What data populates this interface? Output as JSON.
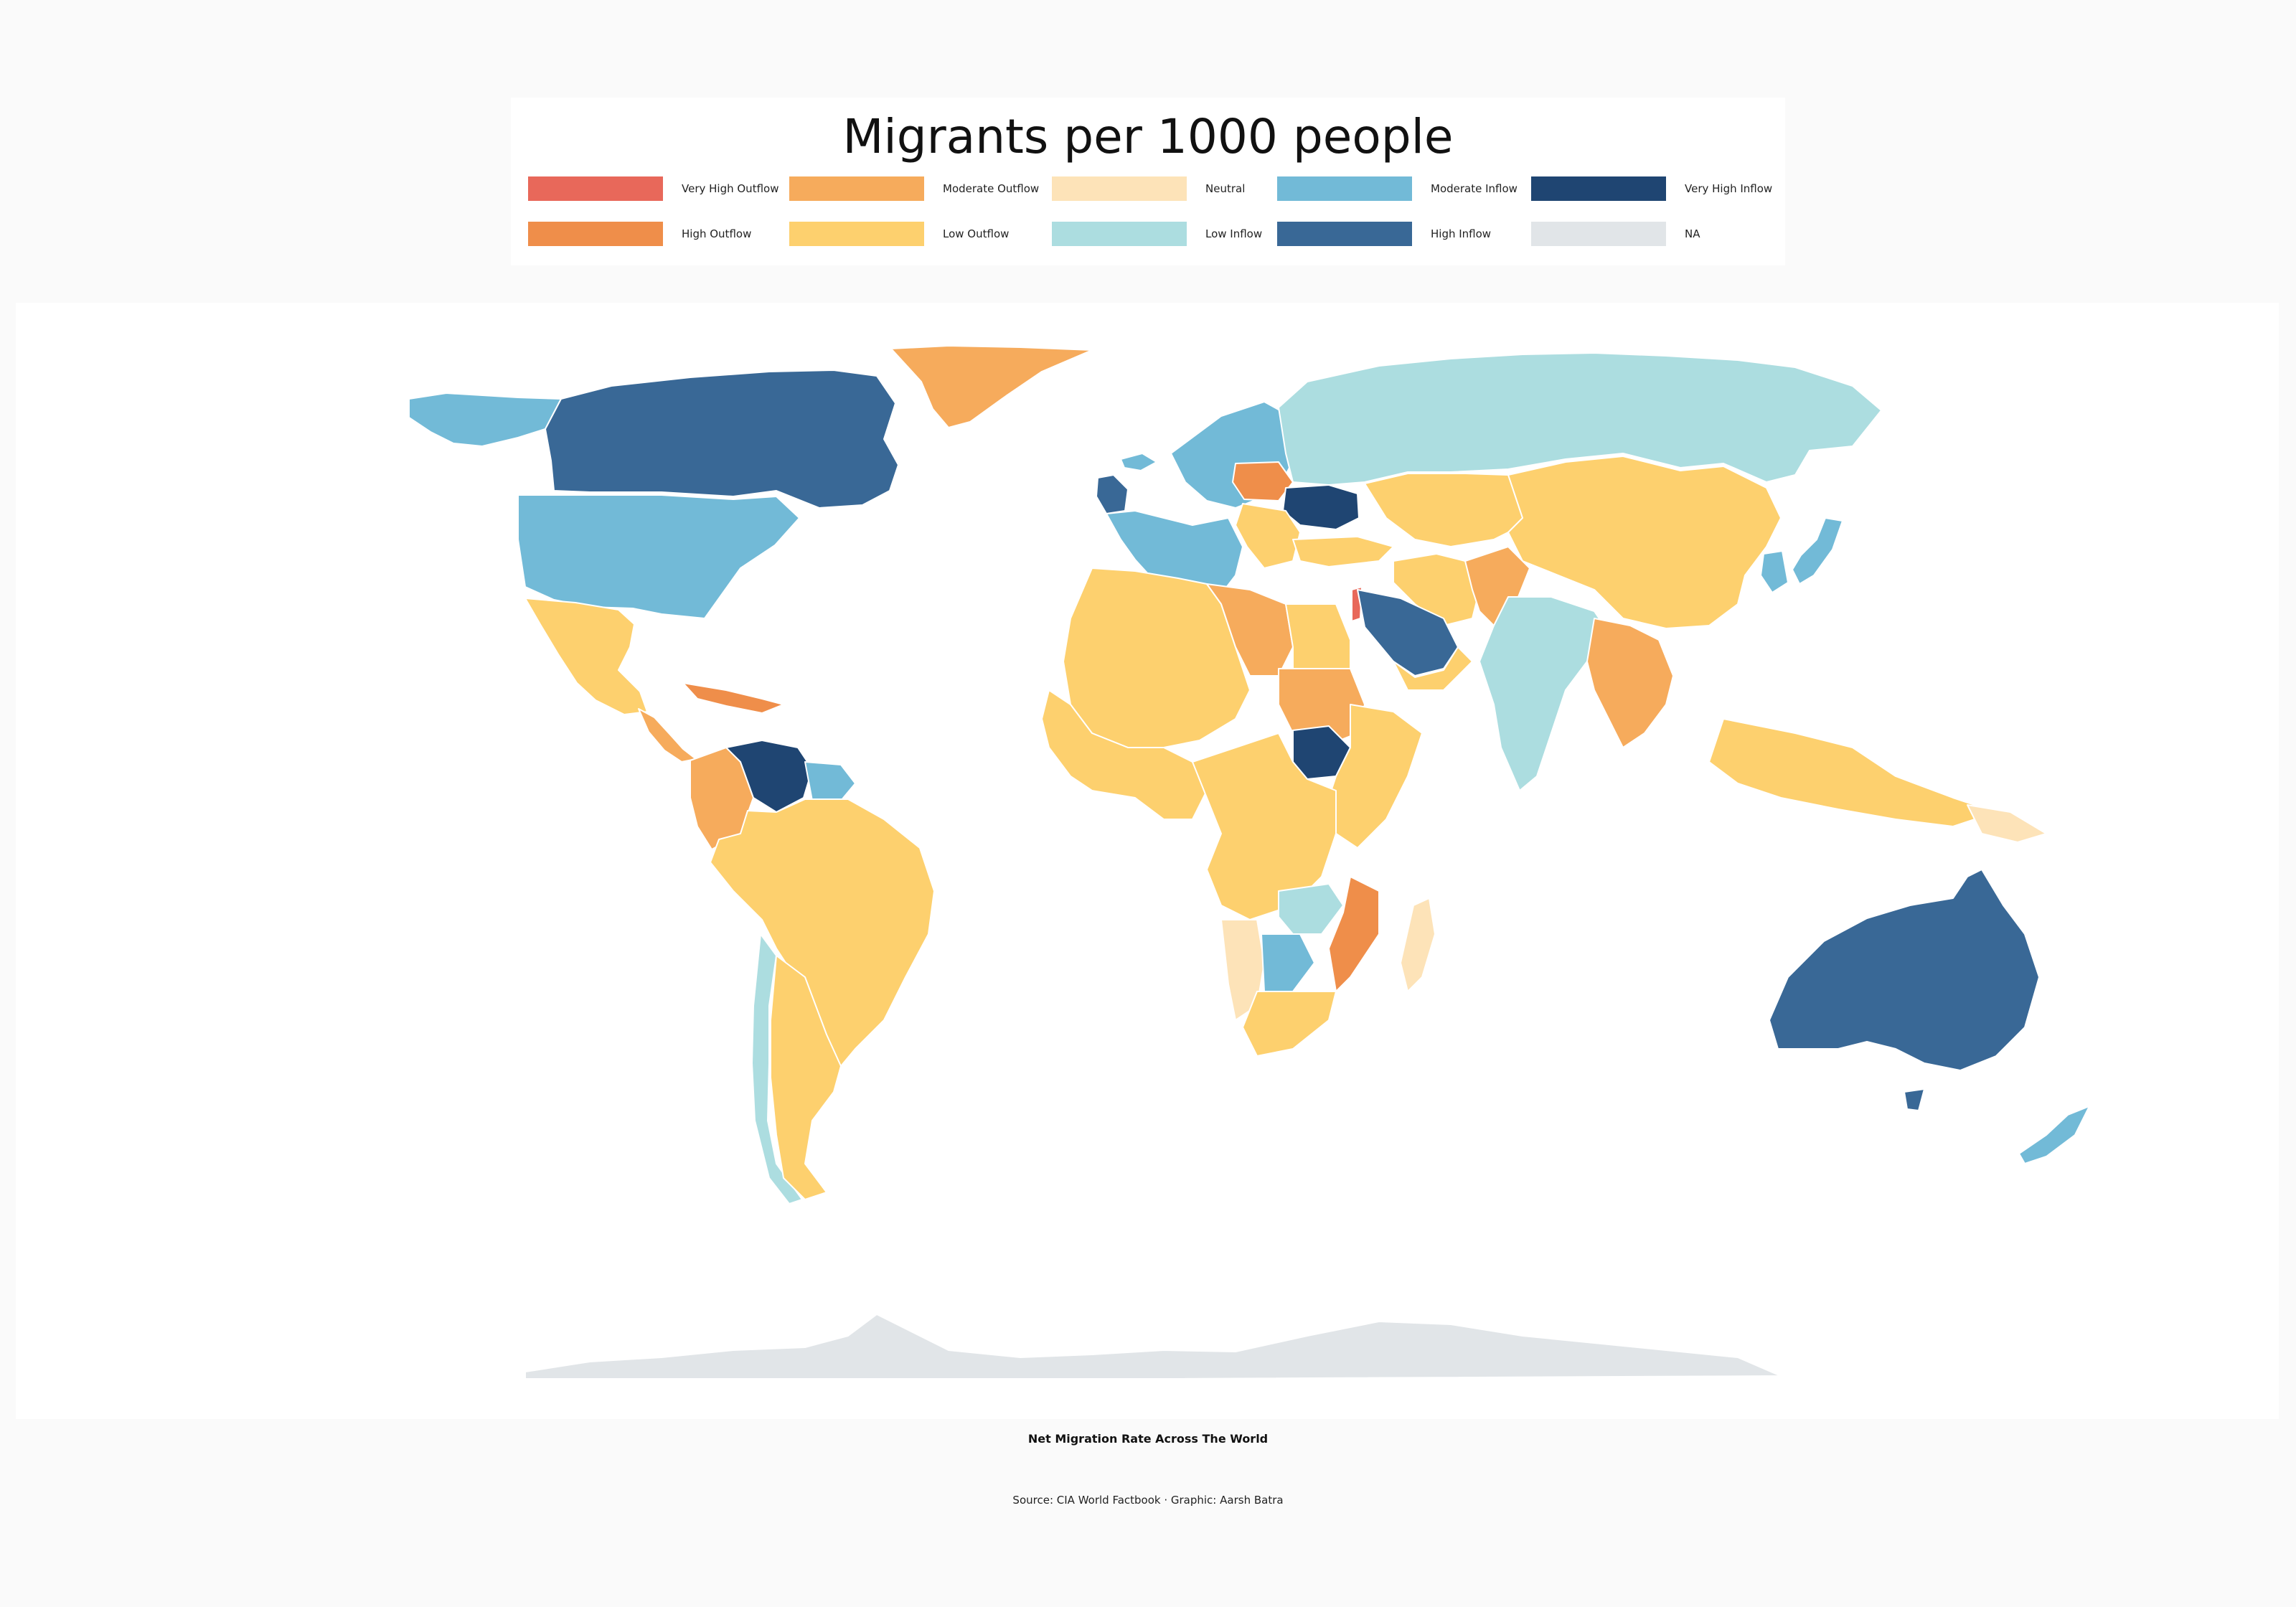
{
  "legend": {
    "title": "Migrants per 1000 people",
    "items": [
      {
        "key": "very-high-outflow",
        "label": "Very High Outflow",
        "color": "#e8685a"
      },
      {
        "key": "moderate-outflow",
        "label": "Moderate Outflow",
        "color": "#f6ab5c"
      },
      {
        "key": "neutral",
        "label": "Neutral",
        "color": "#fde3b8"
      },
      {
        "key": "moderate-inflow",
        "label": "Moderate Inflow",
        "color": "#72bad7"
      },
      {
        "key": "very-high-inflow",
        "label": "Very High Inflow",
        "color": "#1f4572"
      },
      {
        "key": "high-outflow",
        "label": "High Outflow",
        "color": "#ef8e4a"
      },
      {
        "key": "low-outflow",
        "label": "Low Outflow",
        "color": "#fdd06e"
      },
      {
        "key": "low-inflow",
        "label": "Low Inflow",
        "color": "#acdde0"
      },
      {
        "key": "high-inflow",
        "label": "High Inflow",
        "color": "#396896"
      },
      {
        "key": "na",
        "label": "NA",
        "color": "#e1e5e8"
      }
    ]
  },
  "map": {
    "regions": [
      {
        "name": "Canada",
        "category": "high-inflow"
      },
      {
        "name": "United States",
        "category": "moderate-inflow"
      },
      {
        "name": "Alaska",
        "category": "moderate-inflow"
      },
      {
        "name": "Greenland",
        "category": "moderate-outflow"
      },
      {
        "name": "Mexico",
        "category": "low-outflow"
      },
      {
        "name": "Central America",
        "category": "moderate-outflow"
      },
      {
        "name": "Caribbean",
        "category": "high-outflow"
      },
      {
        "name": "Colombia",
        "category": "moderate-outflow"
      },
      {
        "name": "Venezuela",
        "category": "very-high-inflow"
      },
      {
        "name": "Guianas",
        "category": "moderate-inflow"
      },
      {
        "name": "Brazil",
        "category": "low-outflow"
      },
      {
        "name": "Chile",
        "category": "low-inflow"
      },
      {
        "name": "Iceland",
        "category": "moderate-inflow"
      },
      {
        "name": "Western Europe",
        "category": "moderate-inflow"
      },
      {
        "name": "Scandinavia",
        "category": "moderate-inflow"
      },
      {
        "name": "Poland",
        "category": "high-outflow"
      },
      {
        "name": "Ukraine",
        "category": "very-high-inflow"
      },
      {
        "name": "Russia",
        "category": "low-inflow"
      },
      {
        "name": "Kazakhstan & Central Asia",
        "category": "low-outflow"
      },
      {
        "name": "China",
        "category": "low-outflow"
      },
      {
        "name": "India",
        "category": "low-inflow"
      },
      {
        "name": "Pakistan & Afghanistan",
        "category": "moderate-outflow"
      },
      {
        "name": "Iran",
        "category": "low-outflow"
      },
      {
        "name": "Saudi Arabia",
        "category": "high-inflow"
      },
      {
        "name": "Jordan",
        "category": "very-high-outflow"
      },
      {
        "name": "Japan",
        "category": "moderate-inflow"
      },
      {
        "name": "Korea",
        "category": "moderate-inflow"
      },
      {
        "name": "Southeast Asia",
        "category": "moderate-outflow"
      },
      {
        "name": "Indonesia",
        "category": "low-outflow"
      },
      {
        "name": "Papua New Guinea",
        "category": "neutral"
      },
      {
        "name": "Australia",
        "category": "high-inflow"
      },
      {
        "name": "New Zealand",
        "category": "moderate-inflow"
      },
      {
        "name": "North Africa",
        "category": "low-outflow"
      },
      {
        "name": "Libya",
        "category": "moderate-outflow"
      },
      {
        "name": "Sudan",
        "category": "moderate-outflow"
      },
      {
        "name": "South Sudan",
        "category": "very-high-inflow"
      },
      {
        "name": "West Africa",
        "category": "low-outflow"
      },
      {
        "name": "Central Africa",
        "category": "low-outflow"
      },
      {
        "name": "Eastern Africa",
        "category": "low-outflow"
      },
      {
        "name": "Namibia",
        "category": "neutral"
      },
      {
        "name": "Botswana",
        "category": "moderate-inflow"
      },
      {
        "name": "Zambia",
        "category": "low-inflow"
      },
      {
        "name": "Mozambique",
        "category": "high-outflow"
      },
      {
        "name": "South Africa",
        "category": "low-outflow"
      },
      {
        "name": "Madagascar",
        "category": "neutral"
      },
      {
        "name": "Antarctica",
        "category": "na"
      }
    ]
  },
  "caption": {
    "title": "Net Migration Rate Across The World",
    "source": "Source: CIA World Factbook · Graphic: Aarsh Batra"
  }
}
